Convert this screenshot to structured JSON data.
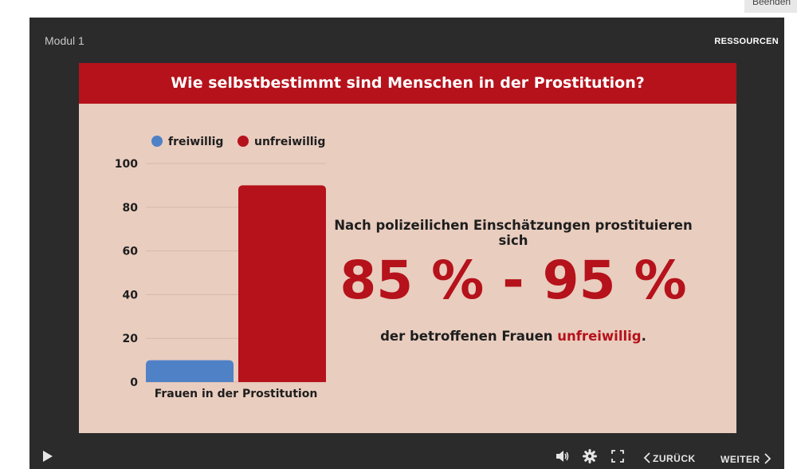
{
  "top_button": {
    "label": "Beenden"
  },
  "player": {
    "module_title": "Modul 1",
    "resources_label": "RESSOURCEN",
    "back_label": "ZURÜCK",
    "next_label": "WEITER",
    "icons": {
      "play": "play-icon",
      "volume": "volume-icon",
      "settings": "gear-icon",
      "fullscreen": "fullscreen-icon",
      "back": "chevron-left-icon",
      "next": "chevron-right-icon"
    }
  },
  "slide": {
    "title": "Wie selbstbestimmt sind Menschen in der Prostitution?",
    "note_line1": "Nach polizeilichen Einschätzungen prostituieren sich",
    "big_range": "85 % - 95 %",
    "note_line3_prefix": "der betroffenen Frauen",
    "note_line3_highlight": "unfreiwillig",
    "note_line3_suffix": "."
  },
  "chart_data": {
    "type": "bar",
    "categories": [
      "Frauen in der Prostitution"
    ],
    "series": [
      {
        "name": "freiwillig",
        "values": [
          10
        ],
        "color": "#4f81c7"
      },
      {
        "name": "unfreiwillig",
        "values": [
          90
        ],
        "color": "#b5121b"
      }
    ],
    "y_ticks": [
      "0",
      "20",
      "40",
      "60",
      "80",
      "100"
    ],
    "ylim": [
      0,
      100
    ],
    "grid": true,
    "legend_position": "top"
  },
  "colors": {
    "accent": "#b5121b",
    "slide_background": "#e9cdbf",
    "player_background": "#2b2b2b"
  }
}
